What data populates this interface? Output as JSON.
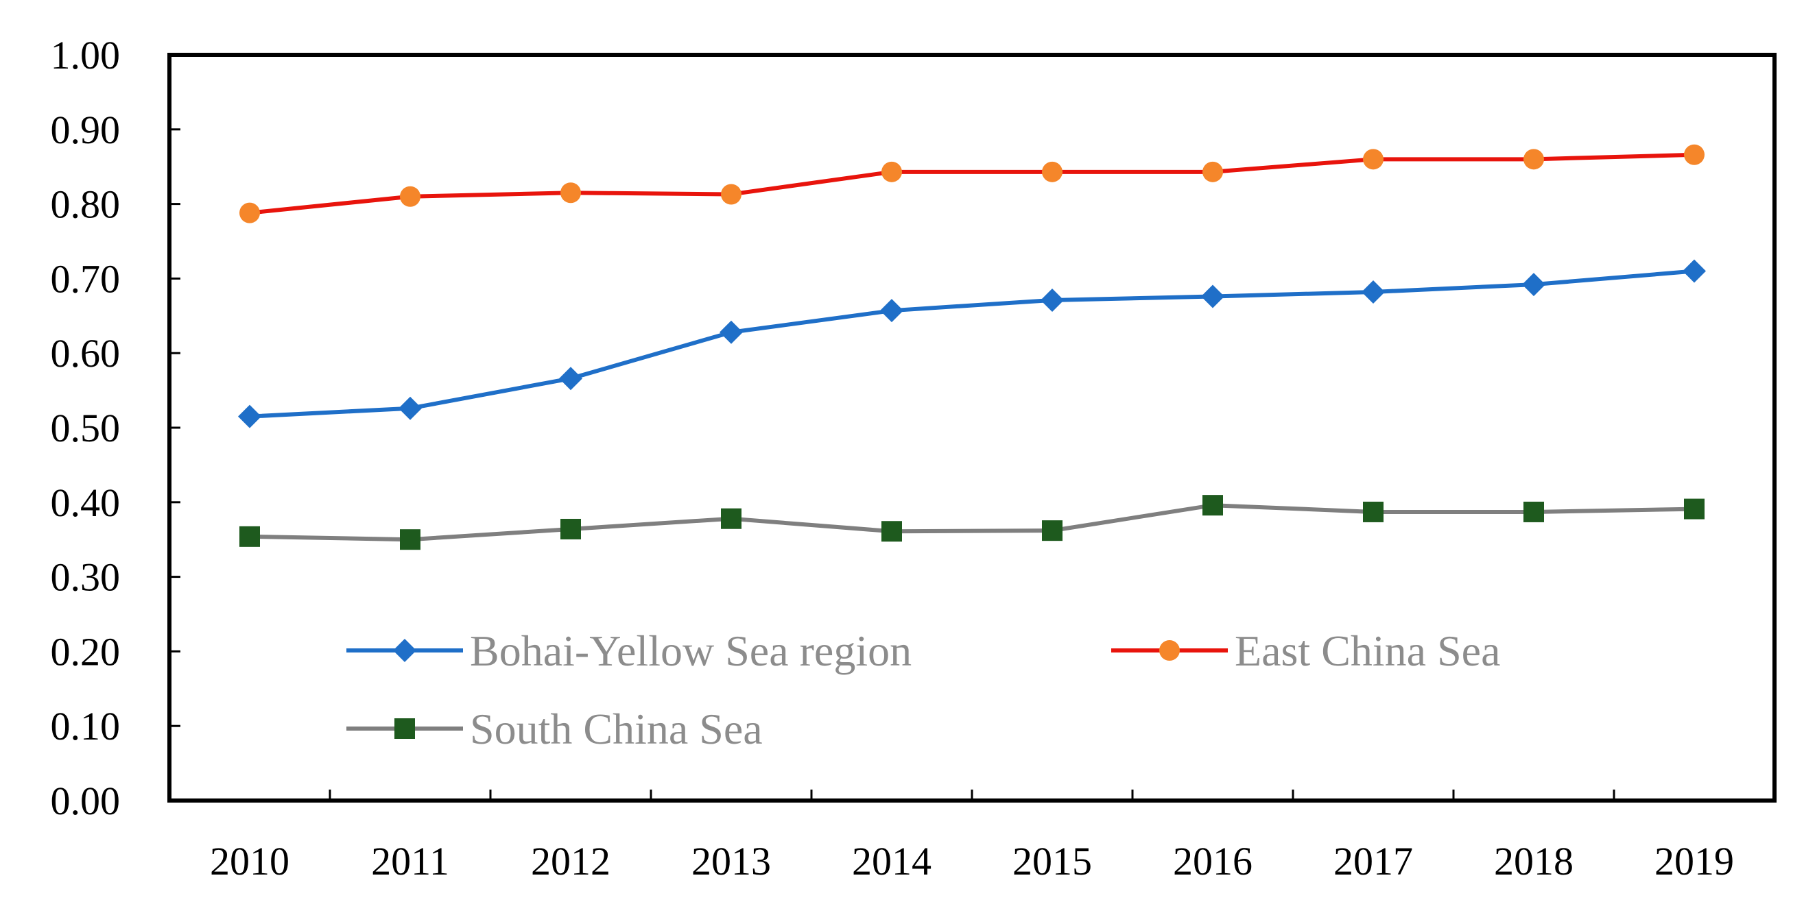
{
  "chart_data": {
    "type": "line",
    "title": "",
    "xlabel": "",
    "ylabel": "",
    "categories": [
      "2010",
      "2011",
      "2012",
      "2013",
      "2014",
      "2015",
      "2016",
      "2017",
      "2018",
      "2019"
    ],
    "ylim": [
      0,
      1
    ],
    "yticks": [
      "0.00",
      "0.10",
      "0.20",
      "0.30",
      "0.40",
      "0.50",
      "0.60",
      "0.70",
      "0.80",
      "0.90",
      "1.00"
    ],
    "grid": false,
    "legend_position": "lower-center-inside",
    "series": [
      {
        "name": "Bohai-Yellow Sea region",
        "color": "#1f6fc8",
        "marker": "diamond",
        "marker_color": "#1f6fc8",
        "values": [
          0.515,
          0.526,
          0.566,
          0.628,
          0.657,
          0.671,
          0.676,
          0.682,
          0.692,
          0.71
        ]
      },
      {
        "name": "East China Sea",
        "color": "#e8140c",
        "marker": "circle",
        "marker_color": "#f5862a",
        "values": [
          0.788,
          0.81,
          0.815,
          0.813,
          0.843,
          0.843,
          0.843,
          0.86,
          0.86,
          0.866
        ]
      },
      {
        "name": "South China Sea",
        "color": "#7f7f7f",
        "marker": "square",
        "marker_color": "#1e5a1e",
        "values": [
          0.354,
          0.35,
          0.364,
          0.378,
          0.361,
          0.362,
          0.396,
          0.387,
          0.387,
          0.391
        ]
      }
    ]
  }
}
